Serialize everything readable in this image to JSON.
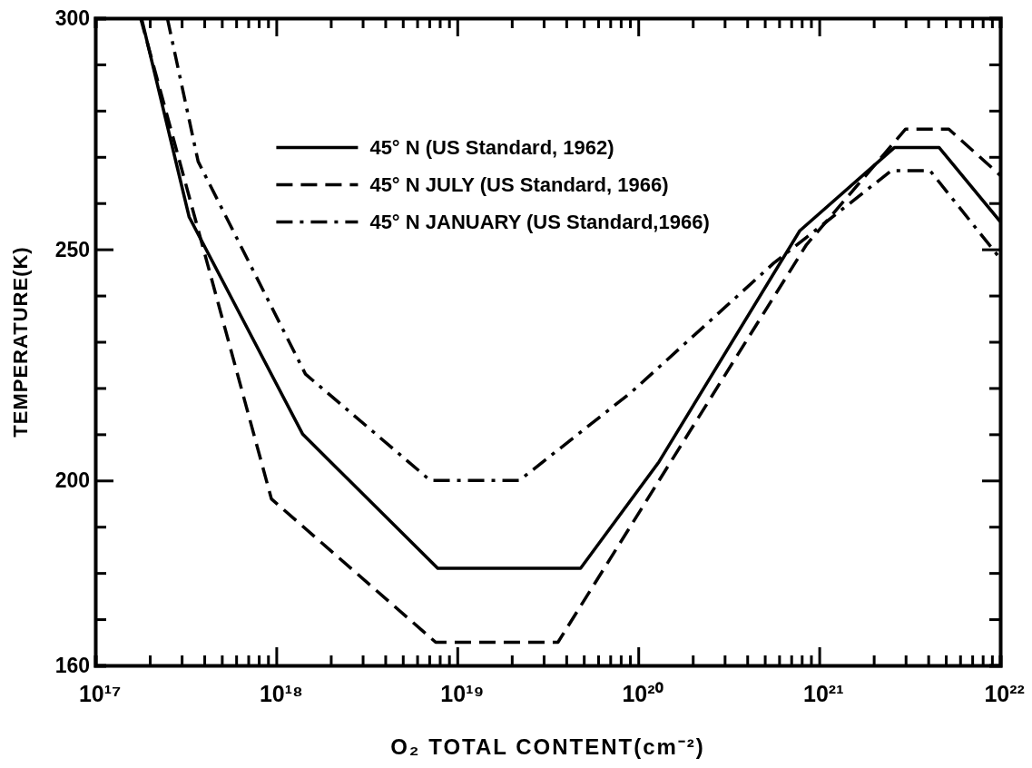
{
  "chart_data": {
    "type": "line",
    "xlabel": "O₂ TOTAL CONTENT(cm⁻²)",
    "ylabel": "TEMPERATURE(K)",
    "log": "x",
    "legend": "top",
    "grid": false,
    "marker": "none",
    "xlim": [
      1e+17,
      1e+22
    ],
    "ylim": [
      160,
      300
    ],
    "xticks": [
      {
        "value": 1e+17,
        "label": "10¹⁷"
      },
      {
        "value": 2e+17,
        "label": null
      },
      {
        "value": 3e+17,
        "label": null
      },
      {
        "value": 4e+17,
        "label": null
      },
      {
        "value": 5e+17,
        "label": null
      },
      {
        "value": 6e+17,
        "label": null
      },
      {
        "value": 7e+17,
        "label": null
      },
      {
        "value": 8e+17,
        "label": null
      },
      {
        "value": 9e+17,
        "label": null
      },
      {
        "value": 1e+18,
        "label": "10¹⁸"
      },
      {
        "value": 2e+18,
        "label": null
      },
      {
        "value": 3e+18,
        "label": null
      },
      {
        "value": 4e+18,
        "label": null
      },
      {
        "value": 5e+18,
        "label": null
      },
      {
        "value": 6e+18,
        "label": null
      },
      {
        "value": 7e+18,
        "label": null
      },
      {
        "value": 8e+18,
        "label": null
      },
      {
        "value": 9e+18,
        "label": null
      },
      {
        "value": 1e+19,
        "label": "10¹⁹"
      },
      {
        "value": 2e+19,
        "label": null
      },
      {
        "value": 3e+19,
        "label": null
      },
      {
        "value": 4e+19,
        "label": null
      },
      {
        "value": 5e+19,
        "label": null
      },
      {
        "value": 6e+19,
        "label": null
      },
      {
        "value": 7e+19,
        "label": null
      },
      {
        "value": 8e+19,
        "label": null
      },
      {
        "value": 9e+19,
        "label": null
      },
      {
        "value": 1e+20,
        "label": "10²⁰"
      },
      {
        "value": 2e+20,
        "label": null
      },
      {
        "value": 3e+20,
        "label": null
      },
      {
        "value": 4e+20,
        "label": null
      },
      {
        "value": 5e+20,
        "label": null
      },
      {
        "value": 6e+20,
        "label": null
      },
      {
        "value": 7e+20,
        "label": null
      },
      {
        "value": 8e+20,
        "label": null
      },
      {
        "value": 9e+20,
        "label": null
      },
      {
        "value": 1e+21,
        "label": "10²¹"
      },
      {
        "value": 2e+21,
        "label": null
      },
      {
        "value": 3e+21,
        "label": null
      },
      {
        "value": 4e+21,
        "label": null
      },
      {
        "value": 5e+21,
        "label": null
      },
      {
        "value": 6e+21,
        "label": null
      },
      {
        "value": 7e+21,
        "label": null
      },
      {
        "value": 8e+21,
        "label": null
      },
      {
        "value": 9e+21,
        "label": null
      },
      {
        "value": 1e+22,
        "label": "10²²"
      }
    ],
    "yticks": [
      160,
      {
        "value": 170,
        "label": null
      },
      {
        "value": 180,
        "label": null
      },
      {
        "value": 190,
        "label": null
      },
      200,
      {
        "value": 210,
        "label": null
      },
      {
        "value": 220,
        "label": null
      },
      {
        "value": 230,
        "label": null
      },
      {
        "value": 240,
        "label": null
      },
      250,
      {
        "value": 260,
        "label": null
      },
      {
        "value": 270,
        "label": null
      },
      {
        "value": 280,
        "label": null
      },
      {
        "value": 290,
        "label": null
      },
      300
    ],
    "series": [
      {
        "name": "45° N (US Standard, 1962)",
        "color": "#000000",
        "line_style": "solid",
        "x": [
          1.8e+17,
          3.3e+17,
          1.4e+18,
          7.8e+18,
          4.8e+19,
          1.3e+20,
          7.8e+20,
          2.6e+21,
          4.6e+21,
          1e+22
        ],
        "values": [
          300,
          257,
          210,
          181,
          181,
          204,
          254,
          272,
          272,
          256
        ]
      },
      {
        "name": "45° N JULY (US Standard, 1966)",
        "color": "#000000",
        "line_style": "dashed",
        "x": [
          1.78e+17,
          9.4e+17,
          7.6e+18,
          3.6e+19,
          8.5e+20,
          3e+21,
          5.2e+21,
          1e+22
        ],
        "values": [
          300,
          196,
          165,
          165,
          251,
          276,
          276,
          266
        ]
      },
      {
        "name": "45° N JANUARY (US Standard,1966)",
        "color": "#000000",
        "line_style": "dashdot",
        "x": [
          2.5e+17,
          3.7e+17,
          1.45e+18,
          7.1e+18,
          2.2e+19,
          9.1e+19,
          5.6e+20,
          2.5e+21,
          4.1e+21,
          1e+22
        ],
        "values": [
          300,
          269,
          223,
          200,
          200,
          219,
          247,
          267,
          267,
          248
        ]
      }
    ]
  }
}
